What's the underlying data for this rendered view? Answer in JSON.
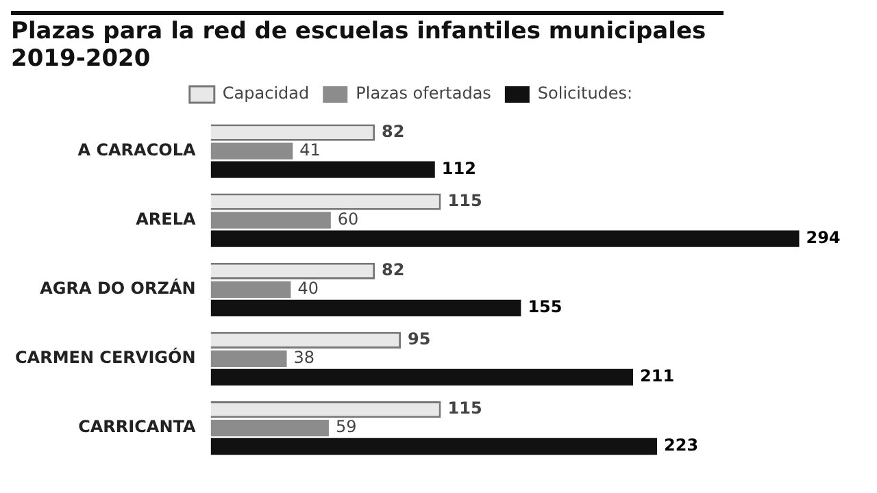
{
  "chart_data": {
    "type": "bar",
    "orientation": "horizontal",
    "title": "Plazas para la red de escuelas infantiles municipales 2019-2020",
    "categories": [
      "A CARACOLA",
      "ARELA",
      "AGRA DO ORZÁN",
      "CARMEN CERVIGÓN",
      "CARRICANTA"
    ],
    "series": [
      {
        "name": "Capacidad",
        "color": "#e8e8e8",
        "values": [
          82,
          115,
          82,
          95,
          115
        ]
      },
      {
        "name": "Plazas ofertadas",
        "color": "#8c8c8c",
        "values": [
          41,
          60,
          40,
          38,
          59
        ]
      },
      {
        "name": "Solicitudes:",
        "color": "#111111",
        "values": [
          112,
          294,
          155,
          211,
          223
        ]
      }
    ],
    "data_labels": true,
    "legend": "top"
  }
}
